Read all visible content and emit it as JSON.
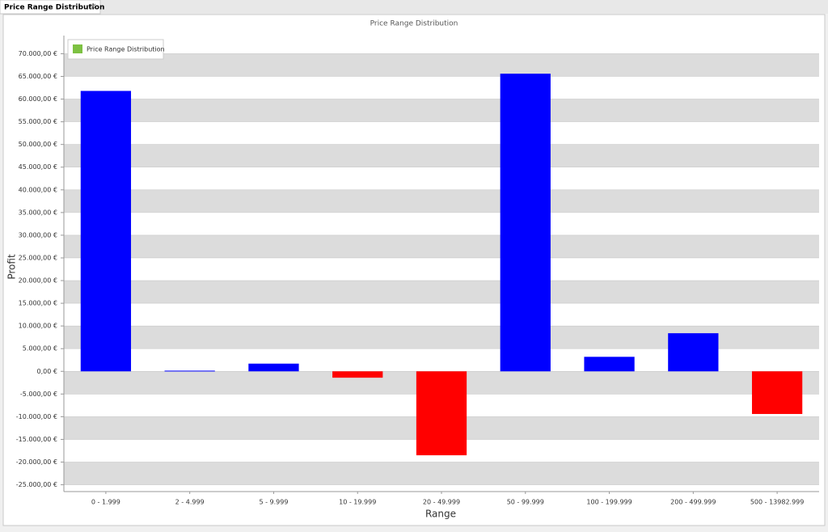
{
  "window": {
    "tab": "Price Range Distribution"
  },
  "chart_data": {
    "type": "bar",
    "title": "Price Range Distribution",
    "x_label": "Range",
    "y_label": "Profit",
    "categories": [
      "0 - 1.999",
      "2 - 4.999",
      "5 - 9.999",
      "10 - 19.999",
      "20 - 49.999",
      "50 - 99.999",
      "100 - 199.999",
      "200 - 499.999",
      "500 - 13982.999"
    ],
    "series": [
      {
        "name": "Price Range Distribution",
        "color": "#7dc142",
        "values": [
          61800,
          150,
          1700,
          -1400,
          -18500,
          65600,
          3200,
          8400,
          -9400
        ]
      }
    ],
    "positive_color": "#0000ff",
    "negative_color": "#ff0000",
    "ylim": [
      -26500,
      74000
    ],
    "yticks": [
      {
        "value": -25000,
        "label": "-25.000,00 €"
      },
      {
        "value": -20000,
        "label": "-20.000,00 €"
      },
      {
        "value": -15000,
        "label": "-15.000,00 €"
      },
      {
        "value": -10000,
        "label": "-10.000,00 €"
      },
      {
        "value": -5000,
        "label": "-5.000,00 €"
      },
      {
        "value": 0,
        "label": "0,00 €"
      },
      {
        "value": 5000,
        "label": "5.000,00 €"
      },
      {
        "value": 10000,
        "label": "10.000,00 €"
      },
      {
        "value": 15000,
        "label": "15.000,00 €"
      },
      {
        "value": 20000,
        "label": "20.000,00 €"
      },
      {
        "value": 25000,
        "label": "25.000,00 €"
      },
      {
        "value": 30000,
        "label": "30.000,00 €"
      },
      {
        "value": 35000,
        "label": "35.000,00 €"
      },
      {
        "value": 40000,
        "label": "40.000,00 €"
      },
      {
        "value": 45000,
        "label": "45.000,00 €"
      },
      {
        "value": 50000,
        "label": "50.000,00 €"
      },
      {
        "value": 55000,
        "label": "55.000,00 €"
      },
      {
        "value": 60000,
        "label": "60.000,00 €"
      },
      {
        "value": 65000,
        "label": "65.000,00 €"
      },
      {
        "value": 70000,
        "label": "70.000,00 €"
      }
    ],
    "grid": "interlaced",
    "legend": "top-left"
  }
}
